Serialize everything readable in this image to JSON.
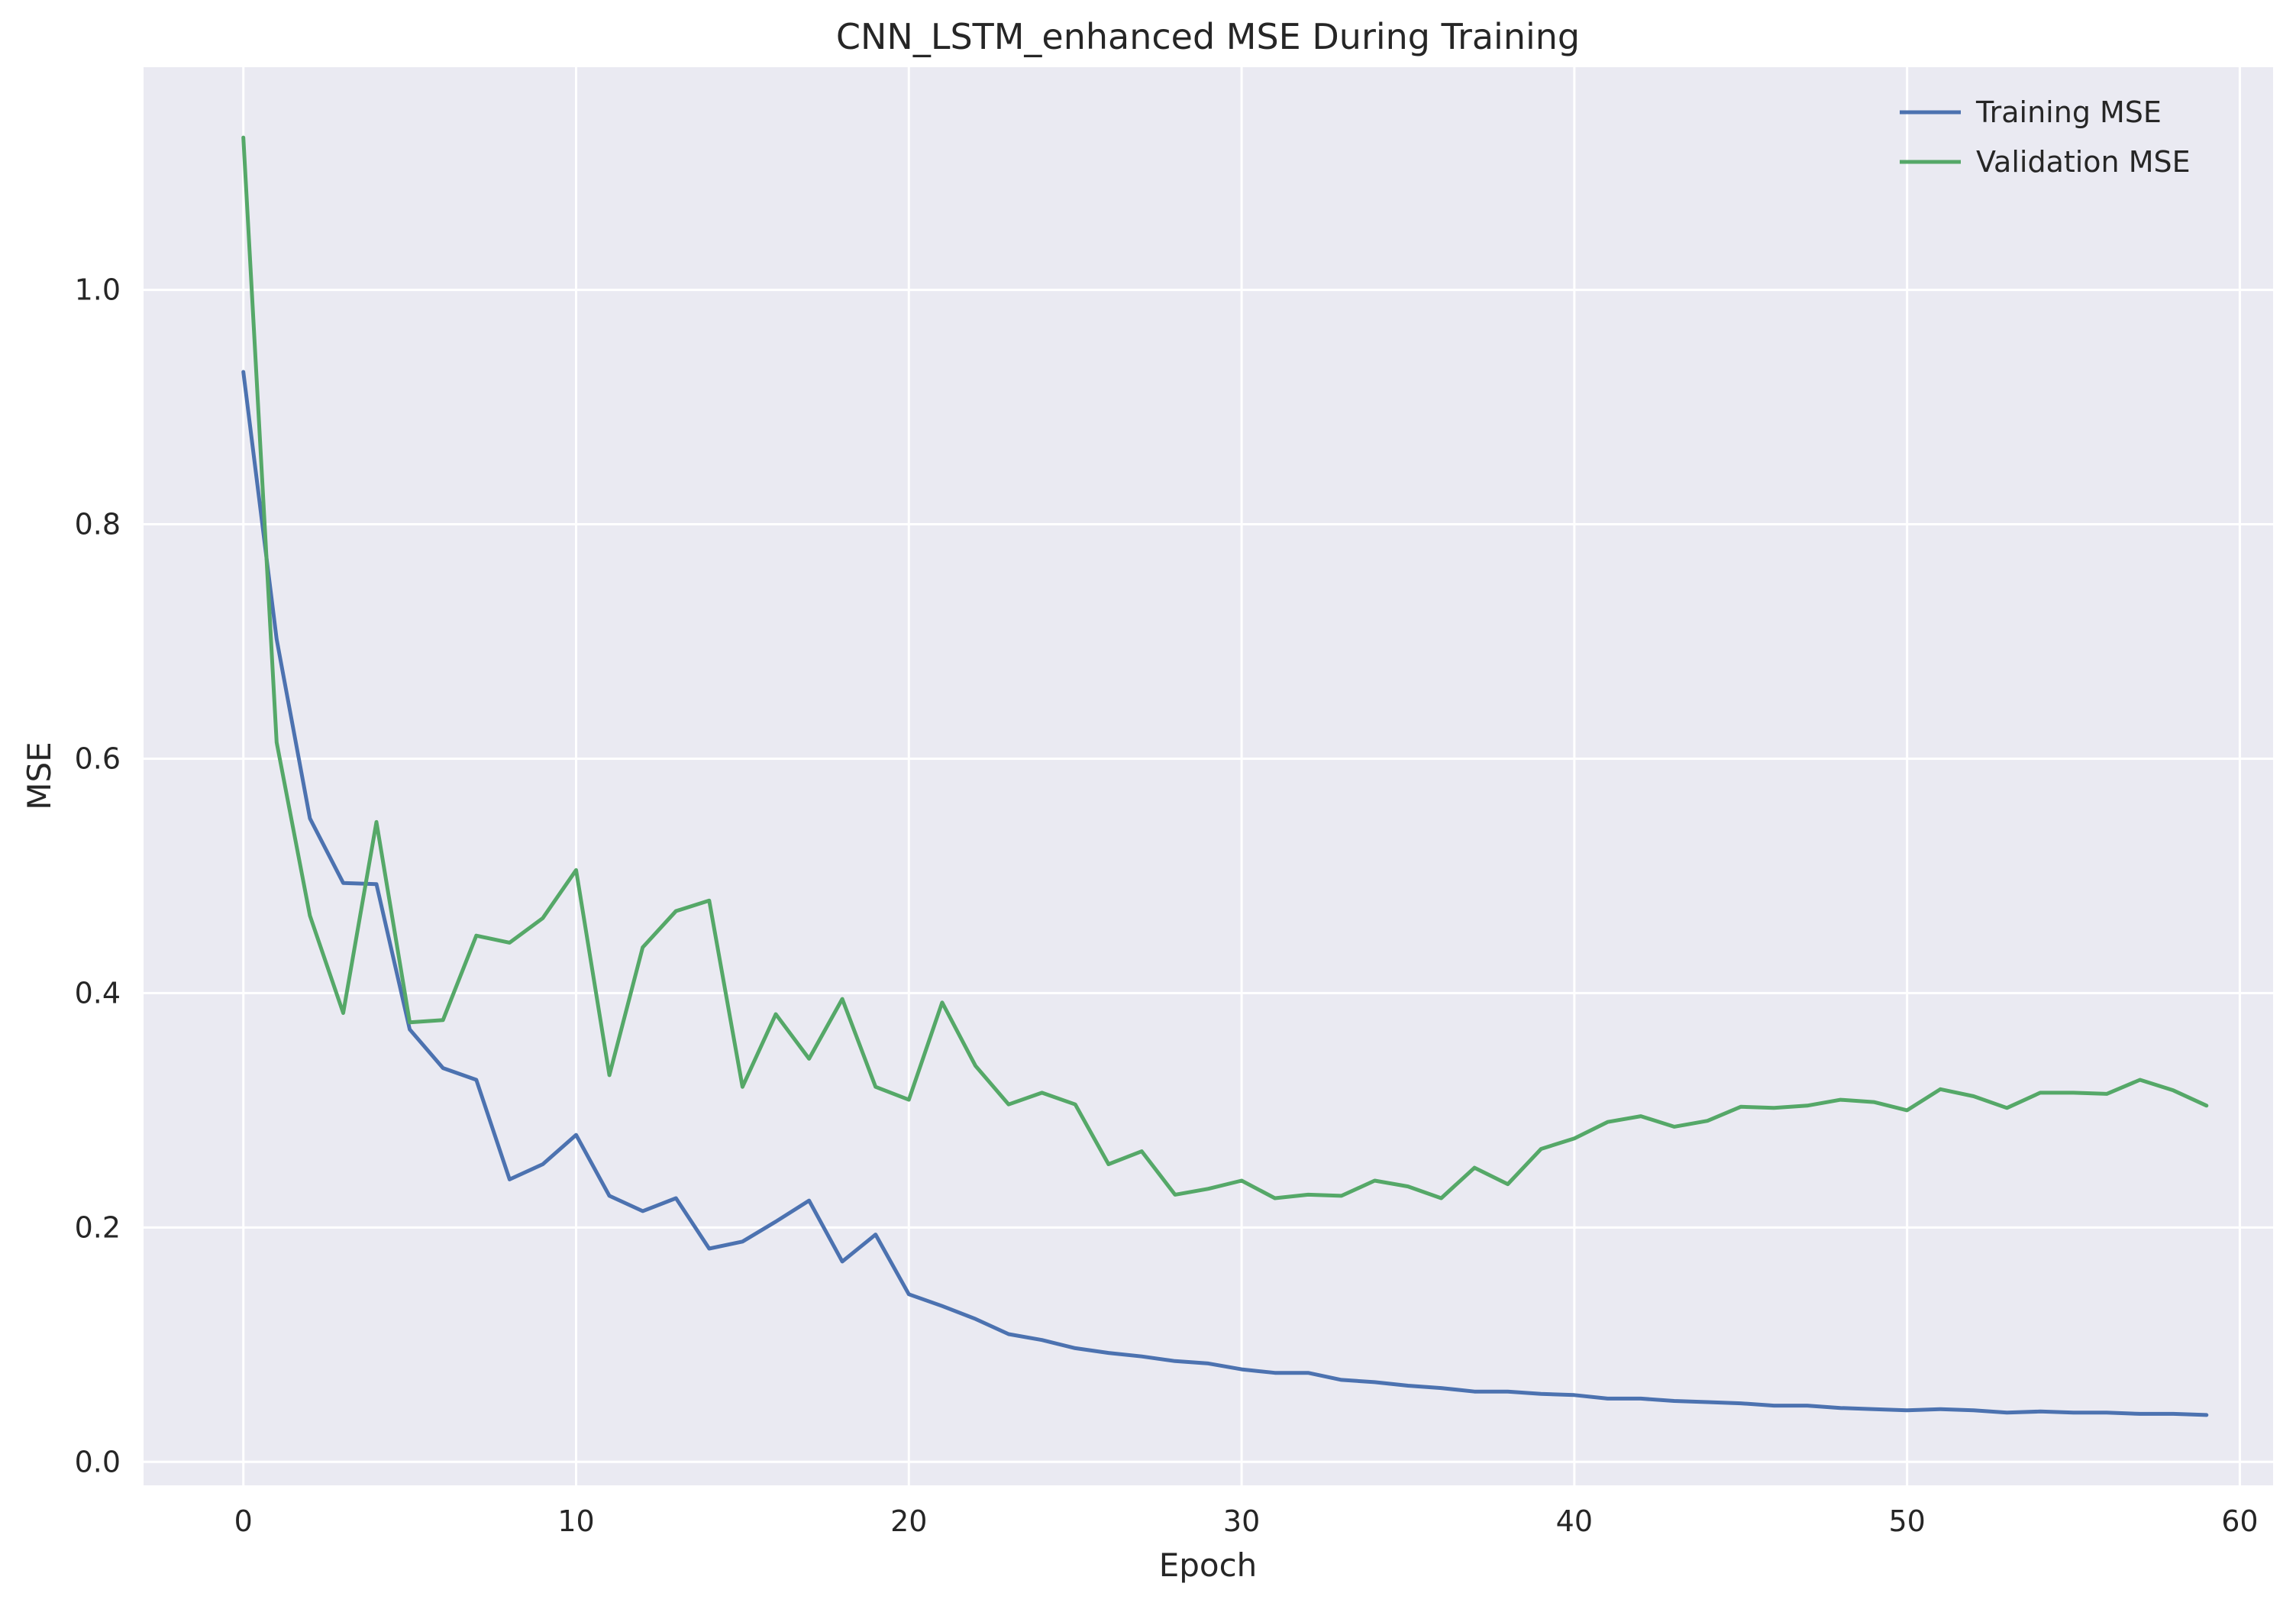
{
  "chart_data": {
    "type": "line",
    "title": "CNN_LSTM_enhanced MSE During Training",
    "xlabel": "Epoch",
    "ylabel": "MSE",
    "xlim": [
      -3,
      61
    ],
    "ylim": [
      -0.02,
      1.19
    ],
    "xticks": [
      0,
      10,
      20,
      30,
      40,
      50,
      60
    ],
    "xtick_labels": [
      "0",
      "10",
      "20",
      "30",
      "40",
      "50",
      "60"
    ],
    "yticks": [
      0.0,
      0.2,
      0.4,
      0.6,
      0.8,
      1.0
    ],
    "ytick_labels": [
      "0.0",
      "0.2",
      "0.4",
      "0.6",
      "0.8",
      "1.0"
    ],
    "grid": true,
    "legend_position": "top-right",
    "background": "#eaeaf2",
    "series": [
      {
        "name": "Training MSE",
        "color": "#4c72b0",
        "x": [
          0,
          1,
          2,
          3,
          4,
          5,
          6,
          7,
          8,
          9,
          10,
          11,
          12,
          13,
          14,
          15,
          16,
          17,
          18,
          19,
          20,
          21,
          22,
          23,
          24,
          25,
          26,
          27,
          28,
          29,
          30,
          31,
          32,
          33,
          34,
          35,
          36,
          37,
          38,
          39,
          40,
          41,
          42,
          43,
          44,
          45,
          46,
          47,
          48,
          49,
          50,
          51,
          52,
          53,
          54,
          55,
          56,
          57,
          58,
          59
        ],
        "values": [
          0.93,
          0.702,
          0.549,
          0.494,
          0.493,
          0.369,
          0.336,
          0.326,
          0.241,
          0.254,
          0.279,
          0.227,
          0.214,
          0.225,
          0.182,
          0.188,
          0.205,
          0.223,
          0.171,
          0.194,
          0.143,
          0.133,
          0.122,
          0.109,
          0.104,
          0.097,
          0.093,
          0.09,
          0.086,
          0.084,
          0.079,
          0.076,
          0.076,
          0.07,
          0.068,
          0.065,
          0.063,
          0.06,
          0.06,
          0.058,
          0.057,
          0.054,
          0.054,
          0.052,
          0.051,
          0.05,
          0.048,
          0.048,
          0.046,
          0.045,
          0.044,
          0.045,
          0.044,
          0.042,
          0.043,
          0.042,
          0.042,
          0.041,
          0.041,
          0.04
        ]
      },
      {
        "name": "Validation MSE",
        "color": "#55a868",
        "x": [
          0,
          1,
          2,
          3,
          4,
          5,
          6,
          7,
          8,
          9,
          10,
          11,
          12,
          13,
          14,
          15,
          16,
          17,
          18,
          19,
          20,
          21,
          22,
          23,
          24,
          25,
          26,
          27,
          28,
          29,
          30,
          31,
          32,
          33,
          34,
          35,
          36,
          37,
          38,
          39,
          40,
          41,
          42,
          43,
          44,
          45,
          46,
          47,
          48,
          49,
          50,
          51,
          52,
          53,
          54,
          55,
          56,
          57,
          58,
          59
        ],
        "values": [
          1.13,
          0.614,
          0.466,
          0.383,
          0.546,
          0.375,
          0.377,
          0.449,
          0.443,
          0.464,
          0.505,
          0.33,
          0.439,
          0.47,
          0.479,
          0.32,
          0.382,
          0.344,
          0.395,
          0.32,
          0.309,
          0.392,
          0.338,
          0.305,
          0.315,
          0.305,
          0.254,
          0.265,
          0.228,
          0.233,
          0.24,
          0.225,
          0.228,
          0.227,
          0.24,
          0.235,
          0.225,
          0.251,
          0.237,
          0.267,
          0.276,
          0.29,
          0.295,
          0.286,
          0.291,
          0.303,
          0.302,
          0.304,
          0.309,
          0.307,
          0.3,
          0.318,
          0.312,
          0.302,
          0.315,
          0.315,
          0.314,
          0.326,
          0.317,
          0.304
        ]
      }
    ]
  }
}
